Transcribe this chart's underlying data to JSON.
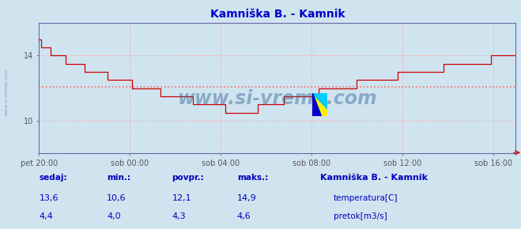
{
  "title": "Kamniška B. - Kamnik",
  "title_color": "#0000cc",
  "bg_color": "#d0e4f0",
  "plot_bg_color": "#d0e4f0",
  "grid_color": "#ff9999",
  "border_color": "#6666aa",
  "x_labels": [
    "pet 20:00",
    "sob 00:00",
    "sob 04:00",
    "sob 08:00",
    "sob 12:00",
    "sob 16:00"
  ],
  "y_ticks": [
    10,
    14
  ],
  "ylim": [
    8.0,
    16.0
  ],
  "avg_temp": 12.1,
  "temp_color": "#cc0000",
  "flow_color": "#008800",
  "avg_temp_line_color": "#ff6666",
  "watermark_text": "www.si-vreme.com",
  "watermark_color": "#336699",
  "sedaj_temp": "13,6",
  "min_temp": "10,6",
  "povpr_temp": "12,1",
  "maks_temp": "14,9",
  "sedaj_flow": "4,4",
  "min_flow": "4,0",
  "povpr_flow": "4,3",
  "maks_flow": "4,6",
  "legend_title": "Kamniška B. - Kamnik",
  "legend_temp_label": "temperatura[C]",
  "legend_flow_label": "pretok[m3/s]",
  "footer_label_color": "#0000bb",
  "footer_value_color": "#0000bb"
}
